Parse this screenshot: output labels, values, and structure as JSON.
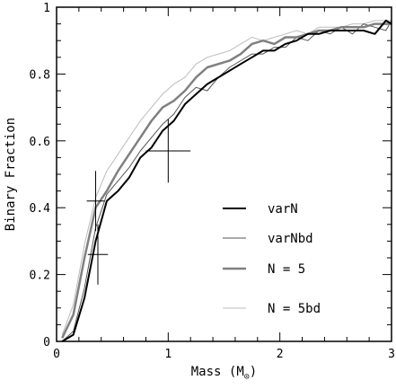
{
  "chart_data": {
    "type": "line",
    "xlabel": "Mass (M",
    "xlabel_sub": "⊙",
    "xlabel_close": ")",
    "ylabel": "Binary Fraction",
    "xlim": [
      0,
      3
    ],
    "ylim": [
      0,
      1
    ],
    "x_ticks": [
      "0",
      "1",
      "2",
      "3"
    ],
    "y_ticks": [
      "0",
      "0.2",
      "0.4",
      "0.6",
      "0.8",
      "1"
    ],
    "legend_position": "center-right",
    "series": [
      {
        "name": "varN",
        "color": "#000000",
        "width": 2,
        "x": [
          0.05,
          0.15,
          0.25,
          0.35,
          0.45,
          0.55,
          0.65,
          0.75,
          0.85,
          0.95,
          1.05,
          1.15,
          1.25,
          1.35,
          1.45,
          1.55,
          1.65,
          1.75,
          1.85,
          1.95,
          2.05,
          2.15,
          2.25,
          2.35,
          2.45,
          2.55,
          2.65,
          2.75,
          2.85,
          2.95,
          3.0
        ],
        "values": [
          0.0,
          0.02,
          0.13,
          0.3,
          0.42,
          0.45,
          0.49,
          0.55,
          0.58,
          0.63,
          0.66,
          0.71,
          0.74,
          0.77,
          0.79,
          0.81,
          0.83,
          0.85,
          0.87,
          0.87,
          0.89,
          0.9,
          0.92,
          0.92,
          0.93,
          0.93,
          0.93,
          0.93,
          0.92,
          0.96,
          0.95
        ]
      },
      {
        "name": "varNbd",
        "color": "#555555",
        "width": 1,
        "x": [
          0.05,
          0.15,
          0.25,
          0.35,
          0.45,
          0.55,
          0.65,
          0.75,
          0.85,
          0.95,
          1.05,
          1.15,
          1.25,
          1.35,
          1.45,
          1.55,
          1.65,
          1.75,
          1.85,
          1.95,
          2.05,
          2.15,
          2.25,
          2.35,
          2.45,
          2.55,
          2.65,
          2.75,
          2.85,
          2.95,
          3.0
        ],
        "values": [
          0.0,
          0.03,
          0.16,
          0.34,
          0.44,
          0.48,
          0.52,
          0.57,
          0.61,
          0.65,
          0.68,
          0.73,
          0.76,
          0.75,
          0.79,
          0.82,
          0.84,
          0.86,
          0.86,
          0.88,
          0.88,
          0.91,
          0.9,
          0.93,
          0.92,
          0.94,
          0.92,
          0.95,
          0.94,
          0.93,
          0.96
        ]
      },
      {
        "name": "N = 5",
        "color": "#808080",
        "width": 2.5,
        "x": [
          0.05,
          0.15,
          0.25,
          0.35,
          0.45,
          0.55,
          0.65,
          0.75,
          0.85,
          0.95,
          1.05,
          1.15,
          1.25,
          1.35,
          1.45,
          1.55,
          1.65,
          1.75,
          1.85,
          1.95,
          2.05,
          2.15,
          2.25,
          2.35,
          2.45,
          2.55,
          2.65,
          2.75,
          2.85,
          2.95,
          3.0
        ],
        "values": [
          0.01,
          0.08,
          0.25,
          0.4,
          0.45,
          0.51,
          0.56,
          0.61,
          0.66,
          0.7,
          0.72,
          0.75,
          0.79,
          0.82,
          0.83,
          0.84,
          0.86,
          0.89,
          0.9,
          0.89,
          0.91,
          0.91,
          0.92,
          0.93,
          0.93,
          0.94,
          0.94,
          0.94,
          0.95,
          0.95,
          0.95
        ]
      },
      {
        "name": "N = 5bd",
        "color": "#bcbcbc",
        "width": 1,
        "x": [
          0.05,
          0.15,
          0.25,
          0.35,
          0.45,
          0.55,
          0.65,
          0.75,
          0.85,
          0.95,
          1.05,
          1.15,
          1.25,
          1.35,
          1.45,
          1.55,
          1.65,
          1.75,
          1.85,
          1.95,
          2.05,
          2.15,
          2.25,
          2.35,
          2.45,
          2.55,
          2.65,
          2.75,
          2.85,
          2.95,
          3.0
        ],
        "values": [
          0.02,
          0.11,
          0.29,
          0.43,
          0.51,
          0.56,
          0.61,
          0.66,
          0.7,
          0.74,
          0.77,
          0.79,
          0.83,
          0.85,
          0.86,
          0.87,
          0.89,
          0.91,
          0.9,
          0.91,
          0.92,
          0.93,
          0.92,
          0.94,
          0.94,
          0.94,
          0.95,
          0.95,
          0.96,
          0.96,
          0.96
        ]
      }
    ],
    "error_points": [
      {
        "x": 0.35,
        "y": 0.42,
        "x_err": 0.08,
        "y_err": 0.09
      },
      {
        "x": 0.37,
        "y": 0.26,
        "x_err": 0.09,
        "y_err": 0.09
      },
      {
        "x": 1.0,
        "y": 0.57,
        "x_err": 0.2,
        "y_err": 0.095
      }
    ]
  }
}
